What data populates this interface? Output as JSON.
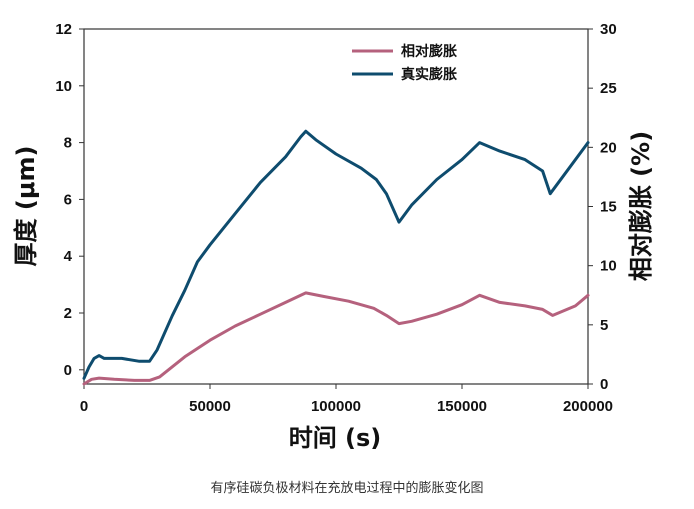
{
  "caption": "有序硅碳负极材料在充放电过程中的膨胀变化图",
  "colors": {
    "relative": "#b5617d",
    "real": "#0e4c6e"
  },
  "chart_data": {
    "type": "line",
    "xlabel": "时间 (s)",
    "ylabel": "厚度 (μm)",
    "y2label": "相对膨胀 (%)",
    "xlim": [
      0,
      200000
    ],
    "ylim": [
      -0.5,
      12
    ],
    "y2lim": [
      0,
      30
    ],
    "xticks": [
      "0",
      "50000",
      "100000",
      "150000",
      "200000"
    ],
    "yticks": [
      "0",
      "2",
      "4",
      "6",
      "8",
      "10",
      "12"
    ],
    "y2ticks": [
      "0",
      "5",
      "10",
      "15",
      "20",
      "25",
      "30"
    ],
    "legend_position": "top-right",
    "series": [
      {
        "name": "相对膨胀",
        "color": "#b5617d",
        "axis": "y2",
        "x": [
          0,
          3000,
          6000,
          12000,
          20000,
          26000,
          30000,
          40000,
          50000,
          60000,
          70000,
          80000,
          88000,
          95000,
          105000,
          115000,
          120000,
          125000,
          130000,
          140000,
          150000,
          157000,
          165000,
          175000,
          182000,
          186000,
          195000,
          200000
        ],
        "values": [
          0,
          0.4,
          0.5,
          0.4,
          0.3,
          0.3,
          0.6,
          2.3,
          3.7,
          4.9,
          5.9,
          6.9,
          7.7,
          7.4,
          7.0,
          6.4,
          5.8,
          5.1,
          5.3,
          5.9,
          6.7,
          7.5,
          6.9,
          6.6,
          6.3,
          5.8,
          6.6,
          7.5
        ]
      },
      {
        "name": "真实膨胀",
        "color": "#0e4c6e",
        "axis": "y",
        "x": [
          0,
          2000,
          4000,
          6000,
          8000,
          15000,
          22000,
          26000,
          29000,
          35000,
          40000,
          45000,
          50000,
          60000,
          70000,
          80000,
          86000,
          88000,
          92000,
          100000,
          110000,
          116000,
          120000,
          125000,
          130000,
          140000,
          150000,
          157000,
          165000,
          175000,
          182000,
          185000,
          190000,
          200000
        ],
        "values": [
          -0.3,
          0.1,
          0.4,
          0.5,
          0.4,
          0.4,
          0.3,
          0.3,
          0.7,
          1.9,
          2.8,
          3.8,
          4.4,
          5.5,
          6.6,
          7.5,
          8.2,
          8.4,
          8.1,
          7.6,
          7.1,
          6.7,
          6.2,
          5.2,
          5.8,
          6.7,
          7.4,
          8.0,
          7.7,
          7.4,
          7.0,
          6.2,
          6.8,
          8.0
        ]
      }
    ]
  }
}
